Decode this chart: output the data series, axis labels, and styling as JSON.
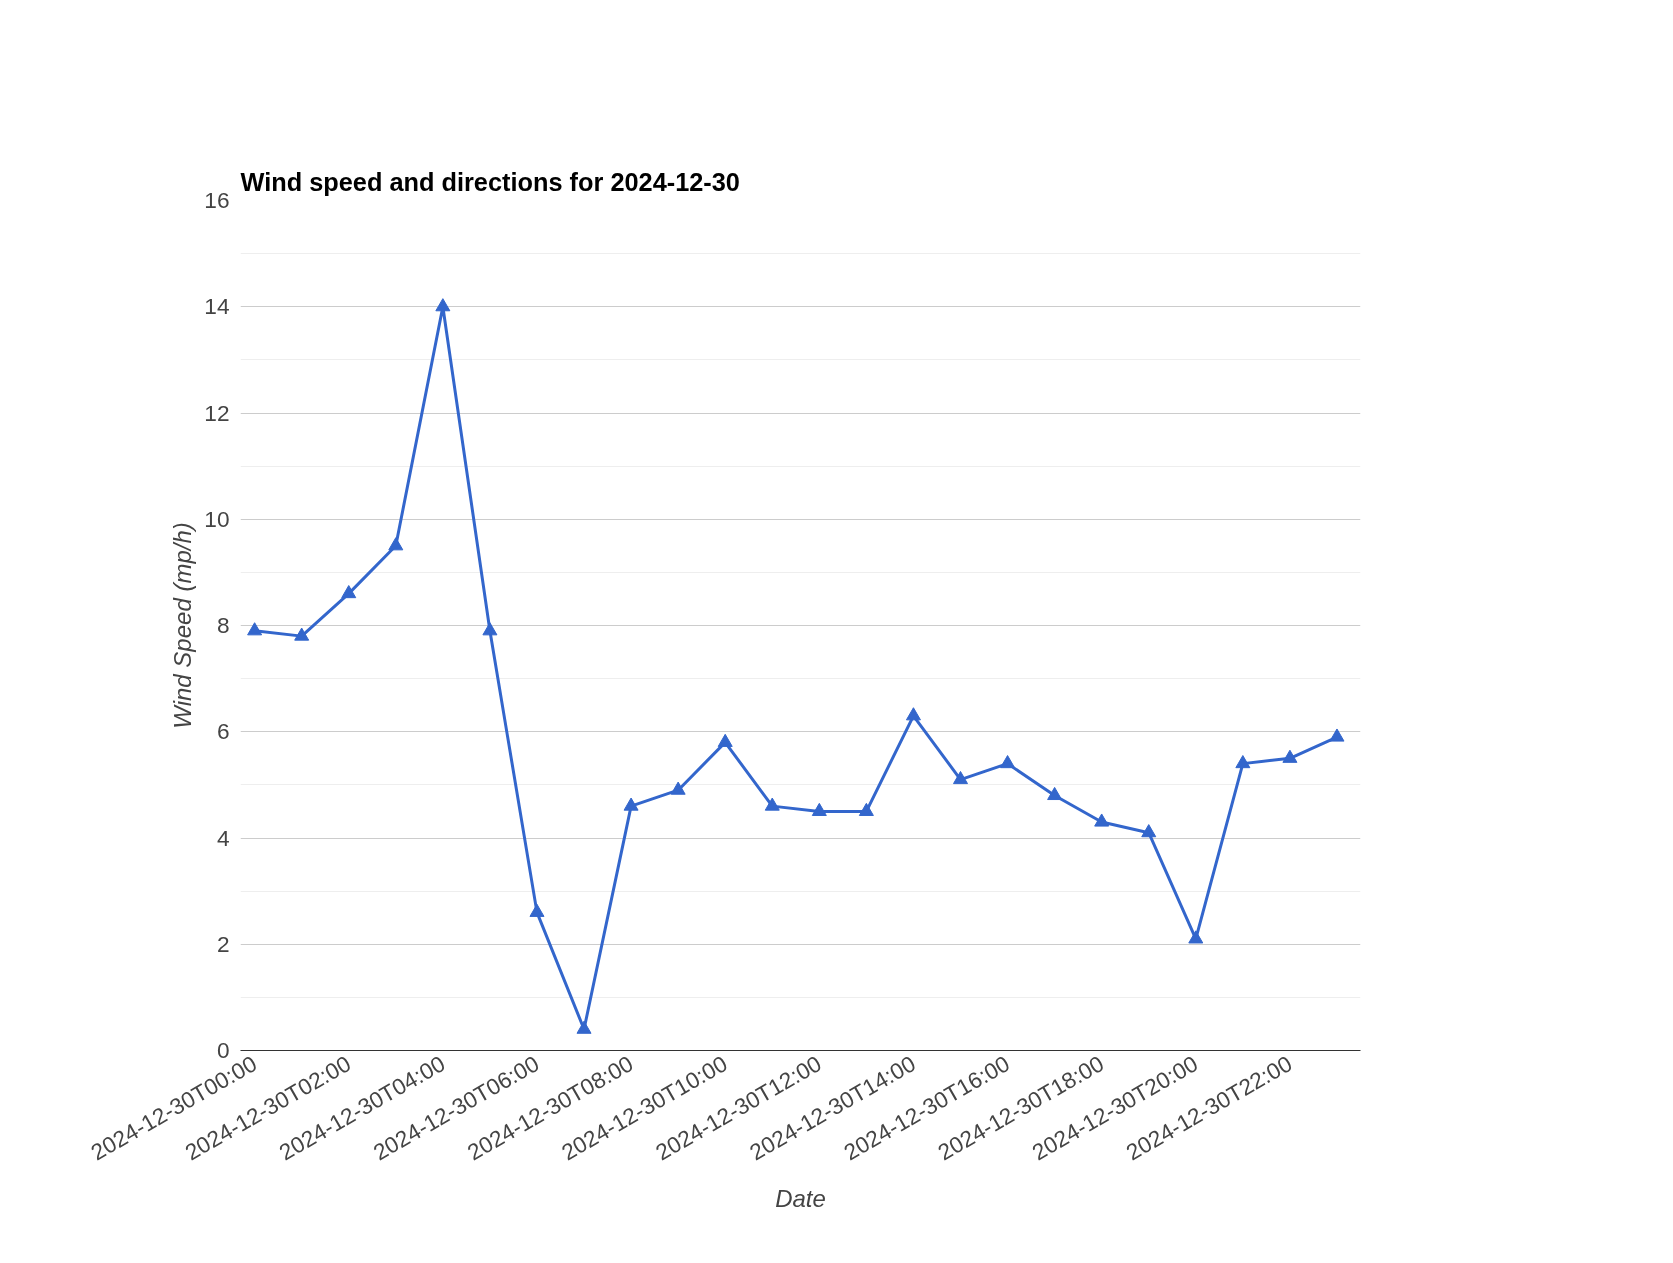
{
  "chart_data": {
    "type": "line",
    "title": "Wind speed and directions for 2024-12-30",
    "xlabel": "Date",
    "ylabel": "Wind Speed (mp/h)",
    "categories": [
      "2024-12-30T00:00",
      null,
      "2024-12-30T02:00",
      null,
      "2024-12-30T04:00",
      null,
      "2024-12-30T06:00",
      null,
      "2024-12-30T08:00",
      null,
      "2024-12-30T10:00",
      null,
      "2024-12-30T12:00",
      null,
      "2024-12-30T14:00",
      null,
      "2024-12-30T16:00",
      null,
      "2024-12-30T18:00",
      null,
      "2024-12-30T20:00",
      null,
      "2024-12-30T22:00",
      null
    ],
    "series": [
      {
        "color": "#3366cc",
        "values": [
          7.9,
          7.8,
          8.6,
          9.5,
          14.0,
          7.9,
          2.6,
          0.4,
          4.6,
          4.9,
          5.8,
          4.6,
          4.5,
          4.5,
          6.3,
          5.1,
          5.4,
          4.8,
          4.3,
          4.1,
          2.1,
          5.4,
          5.5,
          5.9
        ]
      }
    ],
    "ylim": [
      0,
      16
    ],
    "yticks": [
      0,
      2,
      4,
      6,
      8,
      10,
      12,
      14,
      16
    ],
    "grid": "y",
    "marker": "triangle",
    "line_style": "solid"
  }
}
